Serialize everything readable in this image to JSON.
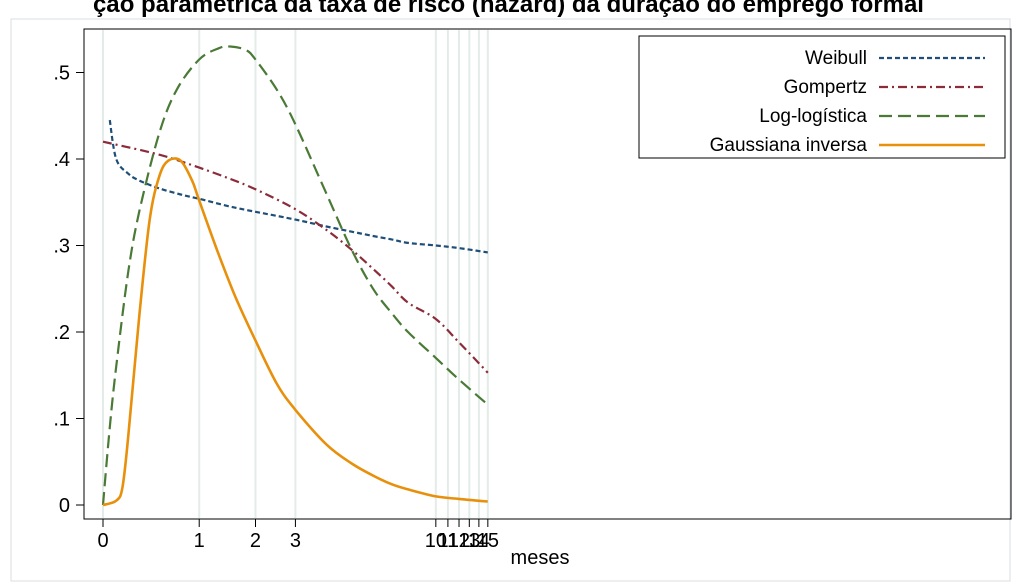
{
  "title": "ção paramétrica da taxa de risco (hazard) da duração do emprego formal",
  "chart_data": {
    "type": "line",
    "title": "ção paramétrica da taxa de risco (hazard) da duração do emprego formal",
    "xlabel": "meses",
    "ylabel": "",
    "x_scale": "log(x+1)",
    "xlim": [
      0,
      15
    ],
    "ylim": [
      0,
      0.54
    ],
    "x_ticks": [
      0,
      1,
      2,
      3,
      10,
      11,
      12,
      13,
      14,
      15
    ],
    "x_tick_labels": [
      "0",
      "1",
      "2",
      "3",
      "10",
      "11",
      "12",
      "13",
      "14",
      "15"
    ],
    "y_ticks": [
      0,
      0.1,
      0.2,
      0.3,
      0.4,
      0.5
    ],
    "y_tick_labels": [
      "0",
      ".1",
      ".2",
      ".3",
      ".4",
      ".5"
    ],
    "grid": "vertical lines at x ticks",
    "legend_position": "top-right",
    "series": [
      {
        "name": "Weibull",
        "color": "#1f4e79",
        "dash": "short-dash",
        "x": [
          0.05,
          0.1,
          0.2,
          0.3,
          0.5,
          0.75,
          1,
          1.5,
          2,
          3,
          4,
          5,
          6,
          7,
          8,
          10,
          12,
          15
        ],
        "y": [
          0.445,
          0.4,
          0.383,
          0.375,
          0.366,
          0.359,
          0.354,
          0.345,
          0.339,
          0.33,
          0.322,
          0.316,
          0.311,
          0.307,
          0.303,
          0.3,
          0.297,
          0.292
        ]
      },
      {
        "name": "Gompertz",
        "color": "#8b2c3a",
        "dash": "dash-dot",
        "x": [
          0,
          0.5,
          1,
          1.5,
          2,
          3,
          4,
          5,
          6,
          7,
          8,
          10,
          12,
          15
        ],
        "y": [
          0.42,
          0.405,
          0.39,
          0.377,
          0.365,
          0.342,
          0.318,
          0.295,
          0.273,
          0.253,
          0.234,
          0.215,
          0.188,
          0.153
        ]
      },
      {
        "name": "Log-logística",
        "color": "#4a7a36",
        "dash": "long-dash",
        "x": [
          0,
          0.05,
          0.1,
          0.2,
          0.3,
          0.5,
          0.7,
          1,
          1.3,
          1.5,
          1.8,
          2,
          2.5,
          3,
          4,
          5,
          6,
          7,
          8,
          10,
          12,
          15
        ],
        "y": [
          0,
          0.09,
          0.16,
          0.27,
          0.34,
          0.43,
          0.48,
          0.515,
          0.528,
          0.53,
          0.526,
          0.515,
          0.48,
          0.44,
          0.36,
          0.295,
          0.25,
          0.222,
          0.2,
          0.17,
          0.145,
          0.116
        ]
      },
      {
        "name": "Gaussiana inversa",
        "color": "#e8900c",
        "dash": "solid",
        "x": [
          0,
          0.1,
          0.15,
          0.2,
          0.3,
          0.4,
          0.5,
          0.6,
          0.75,
          0.9,
          1,
          1.3,
          1.6,
          2,
          2.5,
          3,
          4,
          5,
          6,
          7,
          8,
          10,
          12,
          15
        ],
        "y": [
          0,
          0.005,
          0.02,
          0.08,
          0.22,
          0.33,
          0.38,
          0.398,
          0.398,
          0.375,
          0.352,
          0.29,
          0.24,
          0.19,
          0.14,
          0.11,
          0.07,
          0.048,
          0.034,
          0.024,
          0.018,
          0.01,
          0.007,
          0.004
        ]
      }
    ]
  }
}
